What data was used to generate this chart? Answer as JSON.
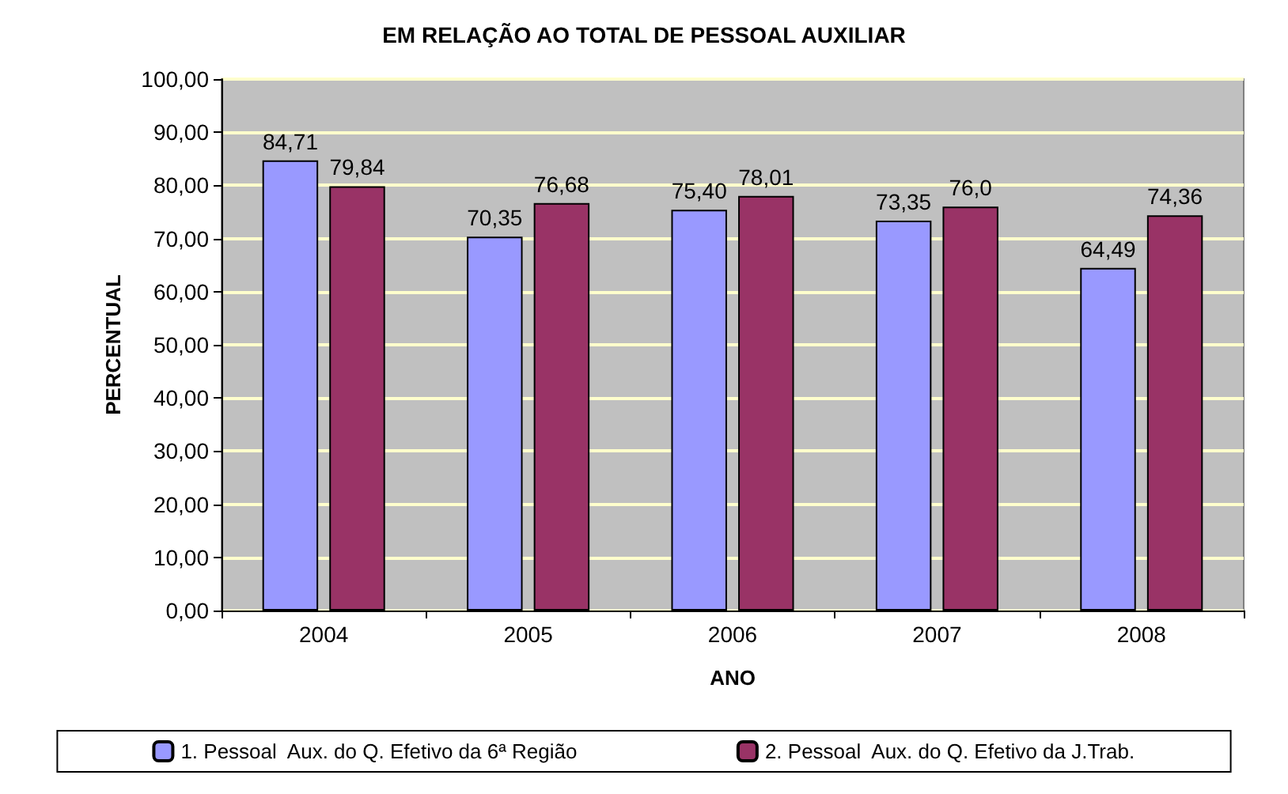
{
  "chart_data": {
    "type": "bar",
    "title": "EM RELAÇÃO AO TOTAL DE PESSOAL AUXILIAR",
    "xlabel": "ANO",
    "ylabel": "PERCENTUAL",
    "categories": [
      "2004",
      "2005",
      "2006",
      "2007",
      "2008"
    ],
    "series": [
      {
        "name": "1. Pessoal  Aux. do Q. Efetivo da 6ª Região",
        "color": "#9999ff",
        "values": [
          84.71,
          70.35,
          75.4,
          73.35,
          64.49
        ],
        "value_labels": [
          "84,71",
          "70,35",
          "75,40",
          "73,35",
          "64,49"
        ]
      },
      {
        "name": "2. Pessoal  Aux. do Q. Efetivo da J.Trab.",
        "color": "#993366",
        "values": [
          79.84,
          76.68,
          78.01,
          76.0,
          74.36
        ],
        "value_labels": [
          "79,84",
          "76,68",
          "78,01",
          "76,0",
          "74,36"
        ]
      }
    ],
    "ylim": [
      0,
      100
    ],
    "yticks": [
      {
        "value": 0,
        "label": "0,00"
      },
      {
        "value": 10,
        "label": "10,00"
      },
      {
        "value": 20,
        "label": "20,00"
      },
      {
        "value": 30,
        "label": "30,00"
      },
      {
        "value": 40,
        "label": "40,00"
      },
      {
        "value": 50,
        "label": "50,00"
      },
      {
        "value": 60,
        "label": "60,00"
      },
      {
        "value": 70,
        "label": "70,00"
      },
      {
        "value": 80,
        "label": "80,00"
      },
      {
        "value": 90,
        "label": "90,00"
      },
      {
        "value": 100,
        "label": "100,00"
      }
    ],
    "grid": "y",
    "legend": "bottom"
  }
}
